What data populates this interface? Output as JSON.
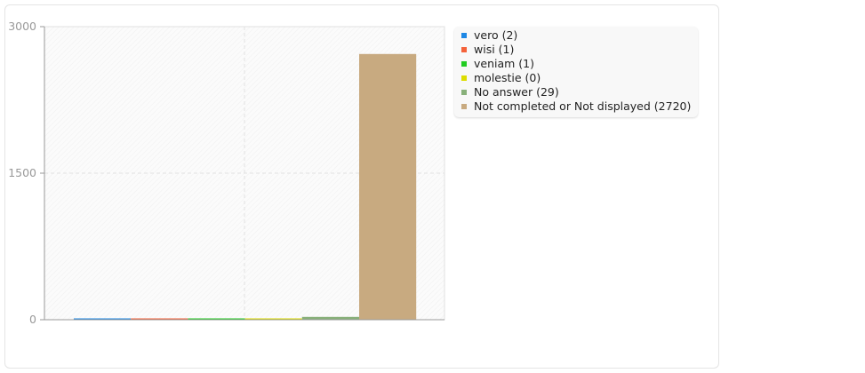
{
  "chart_data": {
    "type": "bar",
    "title": "",
    "xlabel": "",
    "ylabel": "",
    "ylim": [
      0,
      3000
    ],
    "yticks": [
      "0",
      "1500",
      "3000"
    ],
    "grid": true,
    "legend_position": "right",
    "categories": [
      "vero (2)",
      "wisi (1)",
      "veniam (1)",
      "molestie (0)",
      "No answer (29)",
      "Not completed or Not displayed (2720)"
    ],
    "values": [
      2,
      1,
      1,
      0,
      29,
      2720
    ],
    "colors": [
      "#1e88e5",
      "#f4623a",
      "#22cc22",
      "#dddd00",
      "#88b07a",
      "#c8aa80"
    ]
  }
}
